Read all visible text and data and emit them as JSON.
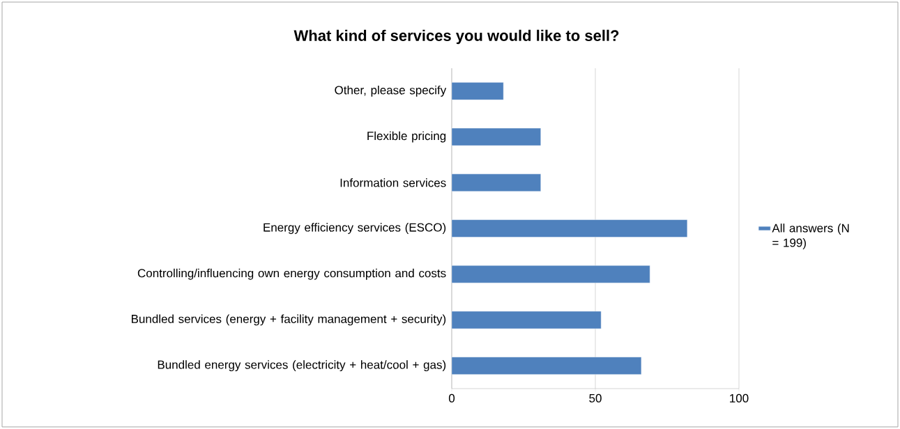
{
  "chart_data": {
    "type": "bar",
    "orientation": "horizontal",
    "title": "What kind of services you would like to sell?",
    "categories": [
      "Other, please specify",
      "Flexible pricing",
      "Information services",
      "Energy efficiency services (ESCO)",
      "Controlling/influencing own energy consumption and costs",
      "Bundled services (energy + facility management + security)",
      "Bundled energy services (electricity + heat/cool + gas)"
    ],
    "series": [
      {
        "name": "All answers (N = 199)",
        "color": "#4f81bd",
        "values": [
          18,
          31,
          31,
          82,
          69,
          52,
          66
        ]
      }
    ],
    "xlim": [
      0,
      100
    ],
    "xticks": [
      0,
      50,
      100
    ],
    "grid": "x",
    "legend": "right"
  }
}
